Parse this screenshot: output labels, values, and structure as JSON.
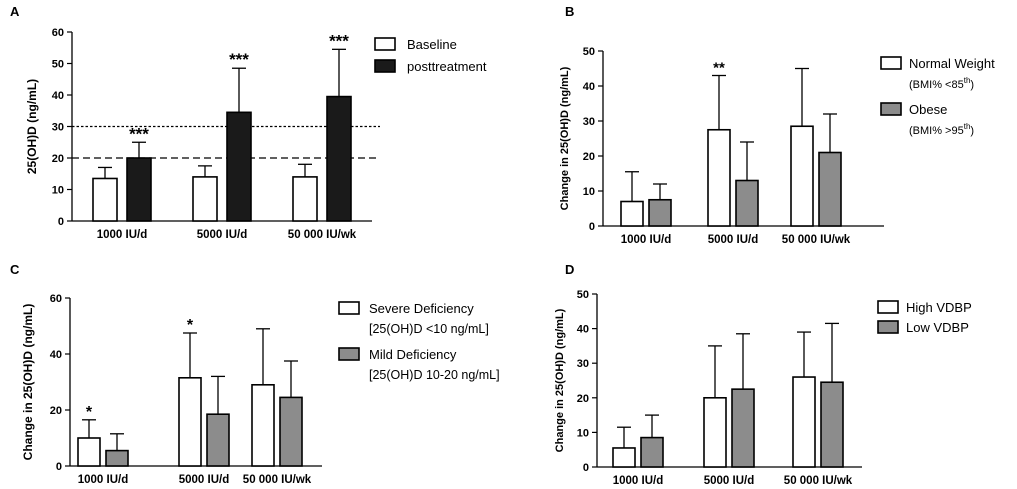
{
  "chart_data": [
    {
      "type": "bar",
      "panel_label": "A",
      "title": "",
      "xlabel": "",
      "ylabel": "25(OH)D (ng/mL)",
      "ylim": [
        0,
        60
      ],
      "yticks": [
        "0",
        "10",
        "20",
        "30",
        "40",
        "50",
        "60"
      ],
      "categories": [
        "1000 IU/d",
        "5000 IU/d",
        "50 000 IU/wk"
      ],
      "series": [
        {
          "name": "Baseline",
          "fill": "#ffffff",
          "values": [
            13.5,
            14,
            14
          ],
          "errors": [
            3.5,
            3.5,
            4
          ]
        },
        {
          "name": "posttreatment",
          "fill": "#1a1a1a",
          "values": [
            20,
            34.5,
            39.5
          ],
          "errors": [
            5,
            14,
            15
          ]
        }
      ],
      "annotations": [
        {
          "category": 0,
          "series": 1,
          "text": "***"
        },
        {
          "category": 1,
          "series": 1,
          "text": "***"
        },
        {
          "category": 2,
          "series": 1,
          "text": "***"
        }
      ],
      "reference_lines": [
        {
          "y": 30,
          "style": "dotted"
        },
        {
          "y": 20,
          "style": "dashed"
        }
      ],
      "legend": [
        {
          "line1": "Baseline",
          "line2": ""
        },
        {
          "line1": "posttreatment",
          "line2": ""
        }
      ],
      "legend_placement": "top-right"
    },
    {
      "type": "bar",
      "panel_label": "B",
      "title": "",
      "xlabel": "",
      "ylabel": "Change in 25(OH)D (ng/mL)",
      "ylim": [
        0,
        50
      ],
      "yticks": [
        "0",
        "10",
        "20",
        "30",
        "40",
        "50"
      ],
      "categories": [
        "1000 IU/d",
        "5000 IU/d",
        "50 000 IU/wk"
      ],
      "series": [
        {
          "name": "Normal  Weight",
          "fill": "#ffffff",
          "values": [
            7,
            27.5,
            28.5
          ],
          "errors": [
            8.5,
            15.5,
            16.5
          ]
        },
        {
          "name": "Obese",
          "fill": "#8c8c8c",
          "values": [
            7.5,
            13,
            21
          ],
          "errors": [
            4.5,
            11,
            11
          ]
        }
      ],
      "annotations": [
        {
          "category": 1,
          "series": 0,
          "text": "**"
        }
      ],
      "reference_lines": [],
      "legend": [
        {
          "line1": "Normal  Weight",
          "line2": "(BMI% <85",
          "sup": "th",
          "close": ")"
        },
        {
          "line1": "Obese",
          "line2": "(BMI% >95",
          "sup": "th",
          "close": ")"
        }
      ],
      "legend_placement": "right"
    },
    {
      "type": "bar",
      "panel_label": "C",
      "title": "",
      "xlabel": "",
      "ylabel": "Change in 25(OH)D (ng/mL)",
      "ylim": [
        0,
        60
      ],
      "yticks": [
        "0",
        "20",
        "40",
        "60"
      ],
      "categories": [
        "1000 IU/d",
        "5000 IU/d",
        "50 000 IU/wk"
      ],
      "series": [
        {
          "name": "Severe Deficiency",
          "fill": "#ffffff",
          "values": [
            10,
            31.5,
            29
          ],
          "errors": [
            6.5,
            16,
            20
          ]
        },
        {
          "name": "Mild Deficiency",
          "fill": "#8c8c8c",
          "values": [
            5.5,
            18.5,
            24.5
          ],
          "errors": [
            6,
            13.5,
            13
          ]
        }
      ],
      "annotations": [
        {
          "category": 0,
          "series": 0,
          "text": "*"
        },
        {
          "category": 1,
          "series": 0,
          "text": "*"
        }
      ],
      "reference_lines": [],
      "legend": [
        {
          "line1": "Severe Deficiency",
          "line2": "[25(OH)D <10 ng/mL]"
        },
        {
          "line1": "Mild Deficiency",
          "line2": "[25(OH)D 10-20 ng/mL]"
        }
      ],
      "legend_placement": "right"
    },
    {
      "type": "bar",
      "panel_label": "D",
      "title": "",
      "xlabel": "",
      "ylabel": "Change in 25(OH)D (ng/mL)",
      "ylim": [
        0,
        50
      ],
      "yticks": [
        "0",
        "10",
        "20",
        "30",
        "40",
        "50"
      ],
      "categories": [
        "1000 IU/d",
        "5000 IU/d",
        "50 000 IU/wk"
      ],
      "series": [
        {
          "name": "High VDBP",
          "fill": "#ffffff",
          "values": [
            5.5,
            20,
            26
          ],
          "errors": [
            6,
            15,
            13
          ]
        },
        {
          "name": "Low VDBP",
          "fill": "#8c8c8c",
          "values": [
            8.5,
            22.5,
            24.5
          ],
          "errors": [
            6.5,
            16,
            17
          ]
        }
      ],
      "annotations": [],
      "reference_lines": [],
      "legend": [
        {
          "line1": "High VDBP",
          "line2": ""
        },
        {
          "line1": "Low VDBP",
          "line2": ""
        }
      ],
      "legend_placement": "top-right"
    }
  ]
}
